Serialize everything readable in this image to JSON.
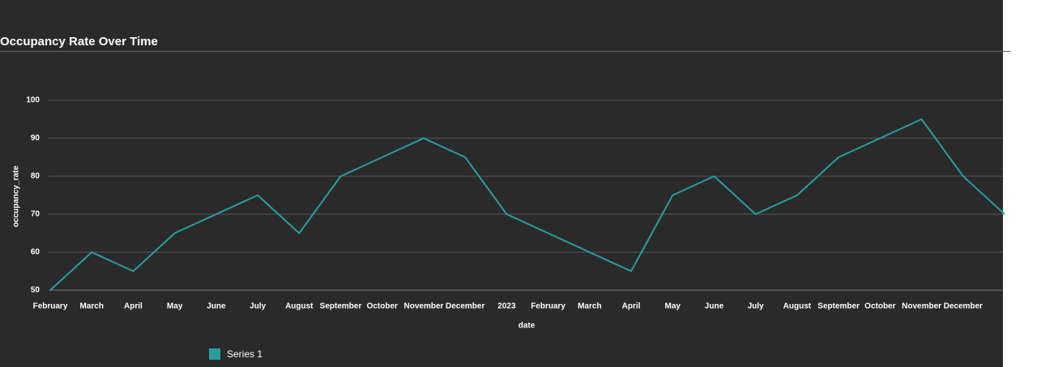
{
  "chart_data": {
    "type": "line",
    "title": "Occupancy Rate Over Time",
    "x_label": "date",
    "y_label": "occupancy_rate",
    "categories": [
      "February",
      "March",
      "April",
      "May",
      "June",
      "July",
      "August",
      "September",
      "October",
      "November",
      "December",
      "2023",
      "February",
      "March",
      "April",
      "May",
      "June",
      "July",
      "August",
      "September",
      "October",
      "November",
      "December",
      null
    ],
    "series": [
      {
        "name": "Series 1",
        "color": "#2a9d9f",
        "values": [
          50,
          60,
          55,
          65,
          70,
          75,
          65,
          80,
          85,
          90,
          85,
          70,
          65,
          60,
          55,
          75,
          80,
          70,
          75,
          85,
          90,
          95,
          80,
          70
        ]
      }
    ],
    "ylim": [
      50,
      100
    ],
    "yticks": [
      50,
      60,
      70,
      80,
      90,
      100
    ],
    "grid": true,
    "legend": "bottom"
  }
}
